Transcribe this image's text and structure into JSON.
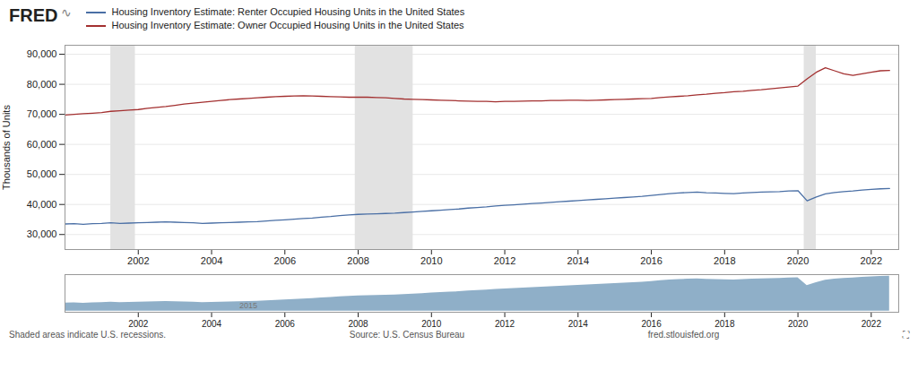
{
  "chart_data": [
    {
      "type": "line",
      "ylabel": "Thousands of Units",
      "annotations": [
        "FRED",
        "∿"
      ],
      "caption": [
        "Shaded areas indicate U.S. recessions.",
        "Source: U.S. Census Bureau",
        "fred.stlouisfed.org",
        "⛶"
      ],
      "legend": "upper left",
      "grid": true,
      "xlim": [
        2000.0,
        2022.75
      ],
      "xticks": [
        2002,
        2004,
        2006,
        2008,
        2010,
        2012,
        2014,
        2016,
        2018,
        2020,
        2022
      ],
      "ylim": [
        25000,
        93000
      ],
      "yticks": [
        {
          "value": 30000,
          "label": "30,000"
        },
        {
          "value": 40000,
          "label": "40,000"
        },
        {
          "value": 50000,
          "label": "50,000"
        },
        {
          "value": 60000,
          "label": "60,000"
        },
        {
          "value": 70000,
          "label": "70,000"
        },
        {
          "value": 80000,
          "label": "80,000"
        },
        {
          "value": 90000,
          "label": "90,000"
        }
      ],
      "shaded_regions": [
        {
          "start": 2001.25,
          "end": 2001.92,
          "color": "#e2e2e2"
        },
        {
          "start": 2007.92,
          "end": 2009.5,
          "color": "#e2e2e2"
        },
        {
          "start": 2020.17,
          "end": 2020.5,
          "color": "#e2e2e2"
        }
      ],
      "x": [
        2000.0,
        2000.25,
        2000.5,
        2000.75,
        2001.0,
        2001.25,
        2001.5,
        2001.75,
        2002.0,
        2002.25,
        2002.5,
        2002.75,
        2003.0,
        2003.25,
        2003.5,
        2003.75,
        2004.0,
        2004.25,
        2004.5,
        2004.75,
        2005.0,
        2005.25,
        2005.5,
        2005.75,
        2006.0,
        2006.25,
        2006.5,
        2006.75,
        2007.0,
        2007.25,
        2007.5,
        2007.75,
        2008.0,
        2008.25,
        2008.5,
        2008.75,
        2009.0,
        2009.25,
        2009.5,
        2009.75,
        2010.0,
        2010.25,
        2010.5,
        2010.75,
        2011.0,
        2011.25,
        2011.5,
        2011.75,
        2012.0,
        2012.25,
        2012.5,
        2012.75,
        2013.0,
        2013.25,
        2013.5,
        2013.75,
        2014.0,
        2014.25,
        2014.5,
        2014.75,
        2015.0,
        2015.25,
        2015.5,
        2015.75,
        2016.0,
        2016.25,
        2016.5,
        2016.75,
        2017.0,
        2017.25,
        2017.5,
        2017.75,
        2018.0,
        2018.25,
        2018.5,
        2018.75,
        2019.0,
        2019.25,
        2019.5,
        2019.75,
        2020.0,
        2020.25,
        2020.5,
        2020.75,
        2021.0,
        2021.25,
        2021.5,
        2021.75,
        2022.0,
        2022.25,
        2022.5
      ],
      "series": [
        {
          "name": "Housing Inventory Estimate: Renter Occupied Housing Units in the United States",
          "color": "#4a6fa5",
          "values": [
            33500,
            33600,
            33400,
            33600,
            33700,
            33900,
            33700,
            33800,
            33900,
            34000,
            34100,
            34200,
            34100,
            34000,
            33900,
            33700,
            33800,
            33900,
            34000,
            34100,
            34200,
            34300,
            34500,
            34700,
            34900,
            35100,
            35300,
            35500,
            35800,
            36000,
            36300,
            36500,
            36700,
            36800,
            36900,
            37000,
            37100,
            37300,
            37500,
            37700,
            37900,
            38100,
            38300,
            38500,
            38800,
            39000,
            39200,
            39500,
            39700,
            39900,
            40100,
            40300,
            40500,
            40700,
            40900,
            41100,
            41300,
            41500,
            41700,
            41900,
            42100,
            42300,
            42500,
            42700,
            43000,
            43300,
            43600,
            43800,
            44000,
            44100,
            43900,
            43800,
            43700,
            43600,
            43800,
            44000,
            44100,
            44200,
            44300,
            44500,
            44600,
            41200,
            42500,
            43500,
            44000,
            44300,
            44500,
            44800,
            45000,
            45200,
            45300
          ]
        },
        {
          "name": "Housing Inventory Estimate: Owner Occupied Housing Units in the United States",
          "color": "#a33030",
          "values": [
            69800,
            70000,
            70200,
            70400,
            70600,
            71000,
            71200,
            71400,
            71600,
            72000,
            72300,
            72600,
            73000,
            73400,
            73700,
            74000,
            74300,
            74600,
            74900,
            75100,
            75300,
            75500,
            75700,
            75900,
            76000,
            76100,
            76200,
            76100,
            76000,
            75900,
            75800,
            75700,
            75700,
            75700,
            75600,
            75500,
            75300,
            75100,
            75000,
            74900,
            74800,
            74700,
            74600,
            74500,
            74400,
            74300,
            74300,
            74200,
            74300,
            74300,
            74400,
            74500,
            74500,
            74600,
            74600,
            74700,
            74700,
            74600,
            74700,
            74800,
            74900,
            75000,
            75100,
            75200,
            75300,
            75600,
            75800,
            76000,
            76200,
            76500,
            76700,
            77000,
            77200,
            77500,
            77700,
            78000,
            78200,
            78500,
            78800,
            79100,
            79400,
            81800,
            84000,
            85500,
            84500,
            83500,
            83000,
            83500,
            84000,
            84500,
            84600
          ]
        }
      ]
    },
    {
      "type": "area",
      "tick_labels": "x",
      "color": "#8fafc8",
      "annotations": [
        {
          "text": "2015",
          "x": 2005.0,
          "y": 1200
        }
      ],
      "xlim": [
        2000.0,
        2022.75
      ],
      "xticks": [
        2002,
        2004,
        2006,
        2008,
        2010,
        2012,
        2014,
        2016,
        2018,
        2020,
        2022
      ],
      "ylim": [
        -500,
        16000
      ],
      "x": [
        2000.0,
        2000.25,
        2000.5,
        2000.75,
        2001.0,
        2001.25,
        2001.5,
        2001.75,
        2002.0,
        2002.25,
        2002.5,
        2002.75,
        2003.0,
        2003.25,
        2003.5,
        2003.75,
        2004.0,
        2004.25,
        2004.5,
        2004.75,
        2005.0,
        2005.25,
        2005.5,
        2005.75,
        2006.0,
        2006.25,
        2006.5,
        2006.75,
        2007.0,
        2007.25,
        2007.5,
        2007.75,
        2008.0,
        2008.25,
        2008.5,
        2008.75,
        2009.0,
        2009.25,
        2009.5,
        2009.75,
        2010.0,
        2010.25,
        2010.5,
        2010.75,
        2011.0,
        2011.25,
        2011.5,
        2011.75,
        2012.0,
        2012.25,
        2012.5,
        2012.75,
        2013.0,
        2013.25,
        2013.5,
        2013.75,
        2014.0,
        2014.25,
        2014.5,
        2014.75,
        2015.0,
        2015.25,
        2015.5,
        2015.75,
        2016.0,
        2016.25,
        2016.5,
        2016.75,
        2017.0,
        2017.25,
        2017.5,
        2017.75,
        2018.0,
        2018.25,
        2018.5,
        2018.75,
        2019.0,
        2019.25,
        2019.5,
        2019.75,
        2020.0,
        2020.25,
        2020.5,
        2020.75,
        2021.0,
        2021.25,
        2021.5,
        2021.75,
        2022.0,
        2022.25,
        2022.5
      ],
      "values": [
        3500,
        3600,
        3400,
        3600,
        3700,
        3900,
        3700,
        3800,
        3900,
        4000,
        4100,
        4200,
        4100,
        4000,
        3900,
        3700,
        3800,
        3900,
        4000,
        4100,
        4200,
        4300,
        4500,
        4700,
        4900,
        5100,
        5300,
        5500,
        5800,
        6000,
        6300,
        6500,
        6700,
        6800,
        6900,
        7000,
        7100,
        7300,
        7500,
        7700,
        7900,
        8100,
        8300,
        8500,
        8800,
        9000,
        9200,
        9500,
        9700,
        9900,
        10100,
        10300,
        10500,
        10700,
        10900,
        11100,
        11300,
        11500,
        11700,
        11900,
        12100,
        12300,
        12500,
        12700,
        13000,
        13300,
        13600,
        13800,
        14000,
        14100,
        13900,
        13800,
        13700,
        13600,
        13800,
        14000,
        14100,
        14200,
        14300,
        14500,
        14600,
        11200,
        12500,
        13500,
        14000,
        14300,
        14500,
        14800,
        15000,
        15200,
        15300
      ]
    }
  ]
}
